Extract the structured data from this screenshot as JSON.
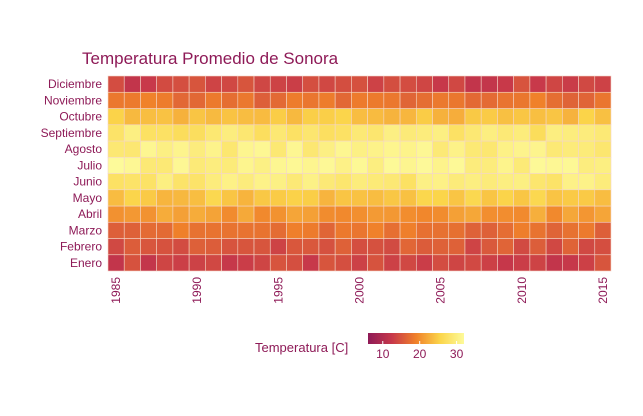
{
  "chart_data": {
    "type": "heatmap",
    "title": "Temperatura Promedio de Sonora",
    "xlabel": "",
    "ylabel": "",
    "x": [
      1985,
      1986,
      1987,
      1988,
      1989,
      1990,
      1991,
      1992,
      1993,
      1994,
      1995,
      1996,
      1997,
      1998,
      1999,
      2000,
      2001,
      2002,
      2003,
      2004,
      2005,
      2006,
      2007,
      2008,
      2009,
      2010,
      2011,
      2012,
      2013,
      2014,
      2015
    ],
    "x_ticks": [
      "1985",
      "1990",
      "1995",
      "2000",
      "2005",
      "2010",
      "2015"
    ],
    "categories": [
      "Enero",
      "Febrero",
      "Marzo",
      "Abril",
      "Mayo",
      "Junio",
      "Julio",
      "Agosto",
      "Septiembre",
      "Octubre",
      "Noviembre",
      "Diciembre"
    ],
    "month_means": [
      13.5,
      15.0,
      17.5,
      21.0,
      24.5,
      29.0,
      30.5,
      30.0,
      28.5,
      24.0,
      17.5,
      13.5
    ],
    "values_note_removed": true,
    "colorbar": {
      "title": "Temperatura [C]",
      "ticks": [
        "10",
        "20",
        "30"
      ],
      "tick_values": [
        10,
        20,
        30
      ],
      "range": [
        6,
        32
      ],
      "colors": [
        "#8e1a57",
        "#c7384a",
        "#f0812a",
        "#fbd54a",
        "#fdfa9a"
      ]
    },
    "grid": false,
    "legend_position": "bottom"
  }
}
